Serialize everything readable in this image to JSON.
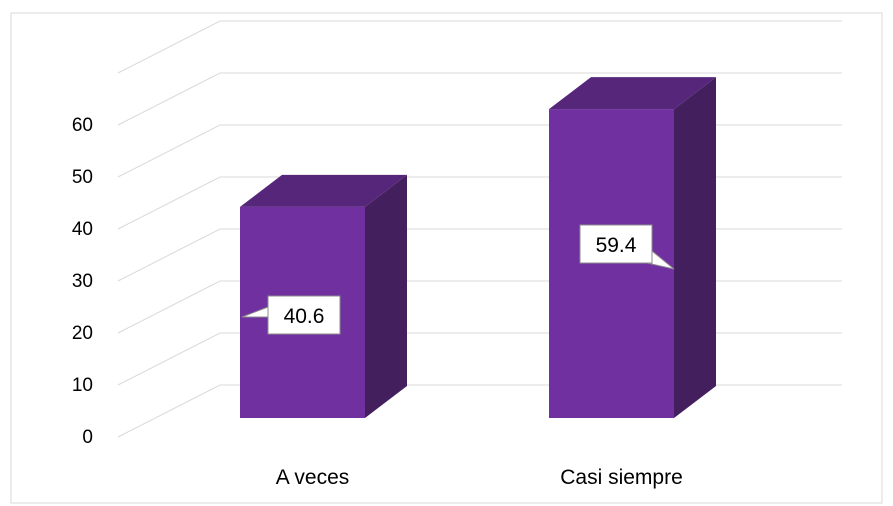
{
  "chart_data": {
    "type": "bar",
    "categories": [
      "A veces",
      "Casi siempre"
    ],
    "values": [
      40.6,
      59.4
    ],
    "data_labels": [
      "40.6",
      "59.4"
    ],
    "ylim": [
      0,
      60
    ],
    "y_ticks": [
      "0",
      "10",
      "20",
      "30",
      "40",
      "50",
      "60"
    ],
    "grid": true,
    "three_d": true,
    "colors": {
      "front": "#7030a0",
      "side": "#441f5e",
      "top": "#56267b",
      "grid": "#d9d9d9",
      "border": "#d9d9d9"
    }
  }
}
